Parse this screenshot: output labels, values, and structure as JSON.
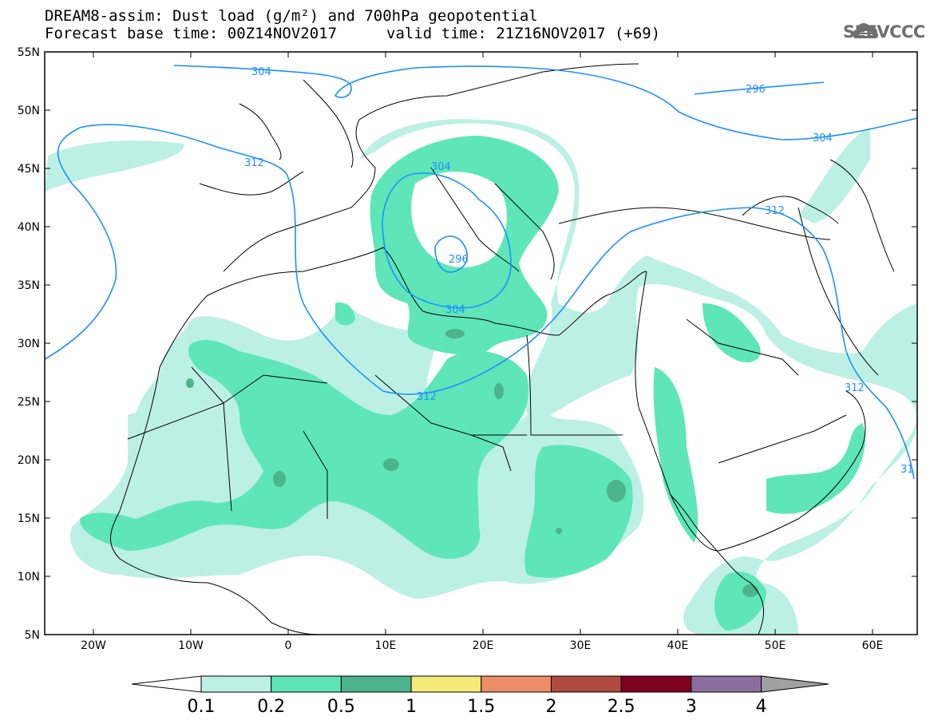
{
  "title": {
    "line1": "DREAM8-assim: Dust load (g/m²) and 700hPa geopotential",
    "line2_left": "Forecast base time: 00Z14NOV2017",
    "line2_right": "valid time: 21Z16NOV2017 (+69)"
  },
  "logo": {
    "text": "SEEVCCC",
    "icon": "cloud-icon"
  },
  "map": {
    "lat_labels": [
      "55N",
      "50N",
      "45N",
      "40N",
      "35N",
      "30N",
      "25N",
      "20N",
      "15N",
      "10N",
      "5N"
    ],
    "lon_labels": [
      "20W",
      "10W",
      "0",
      "10E",
      "20E",
      "30E",
      "40E",
      "50E",
      "60E"
    ],
    "contour_color": "#1e90ff",
    "contour_labels": [
      "304",
      "296",
      "304",
      "312",
      "304",
      "296",
      "304",
      "312",
      "312",
      "312",
      "31"
    ]
  },
  "colorbar": {
    "labels": [
      "0.1",
      "0.2",
      "0.5",
      "1",
      "1.5",
      "2",
      "2.5",
      "3",
      "4"
    ],
    "colors": [
      "#ffffff",
      "#bdf0e4",
      "#5ee6b8",
      "#4cb38c",
      "#f5e97a",
      "#ec8c68",
      "#b04a3e",
      "#800020",
      "#8c6da0",
      "#a0a0a0"
    ]
  }
}
